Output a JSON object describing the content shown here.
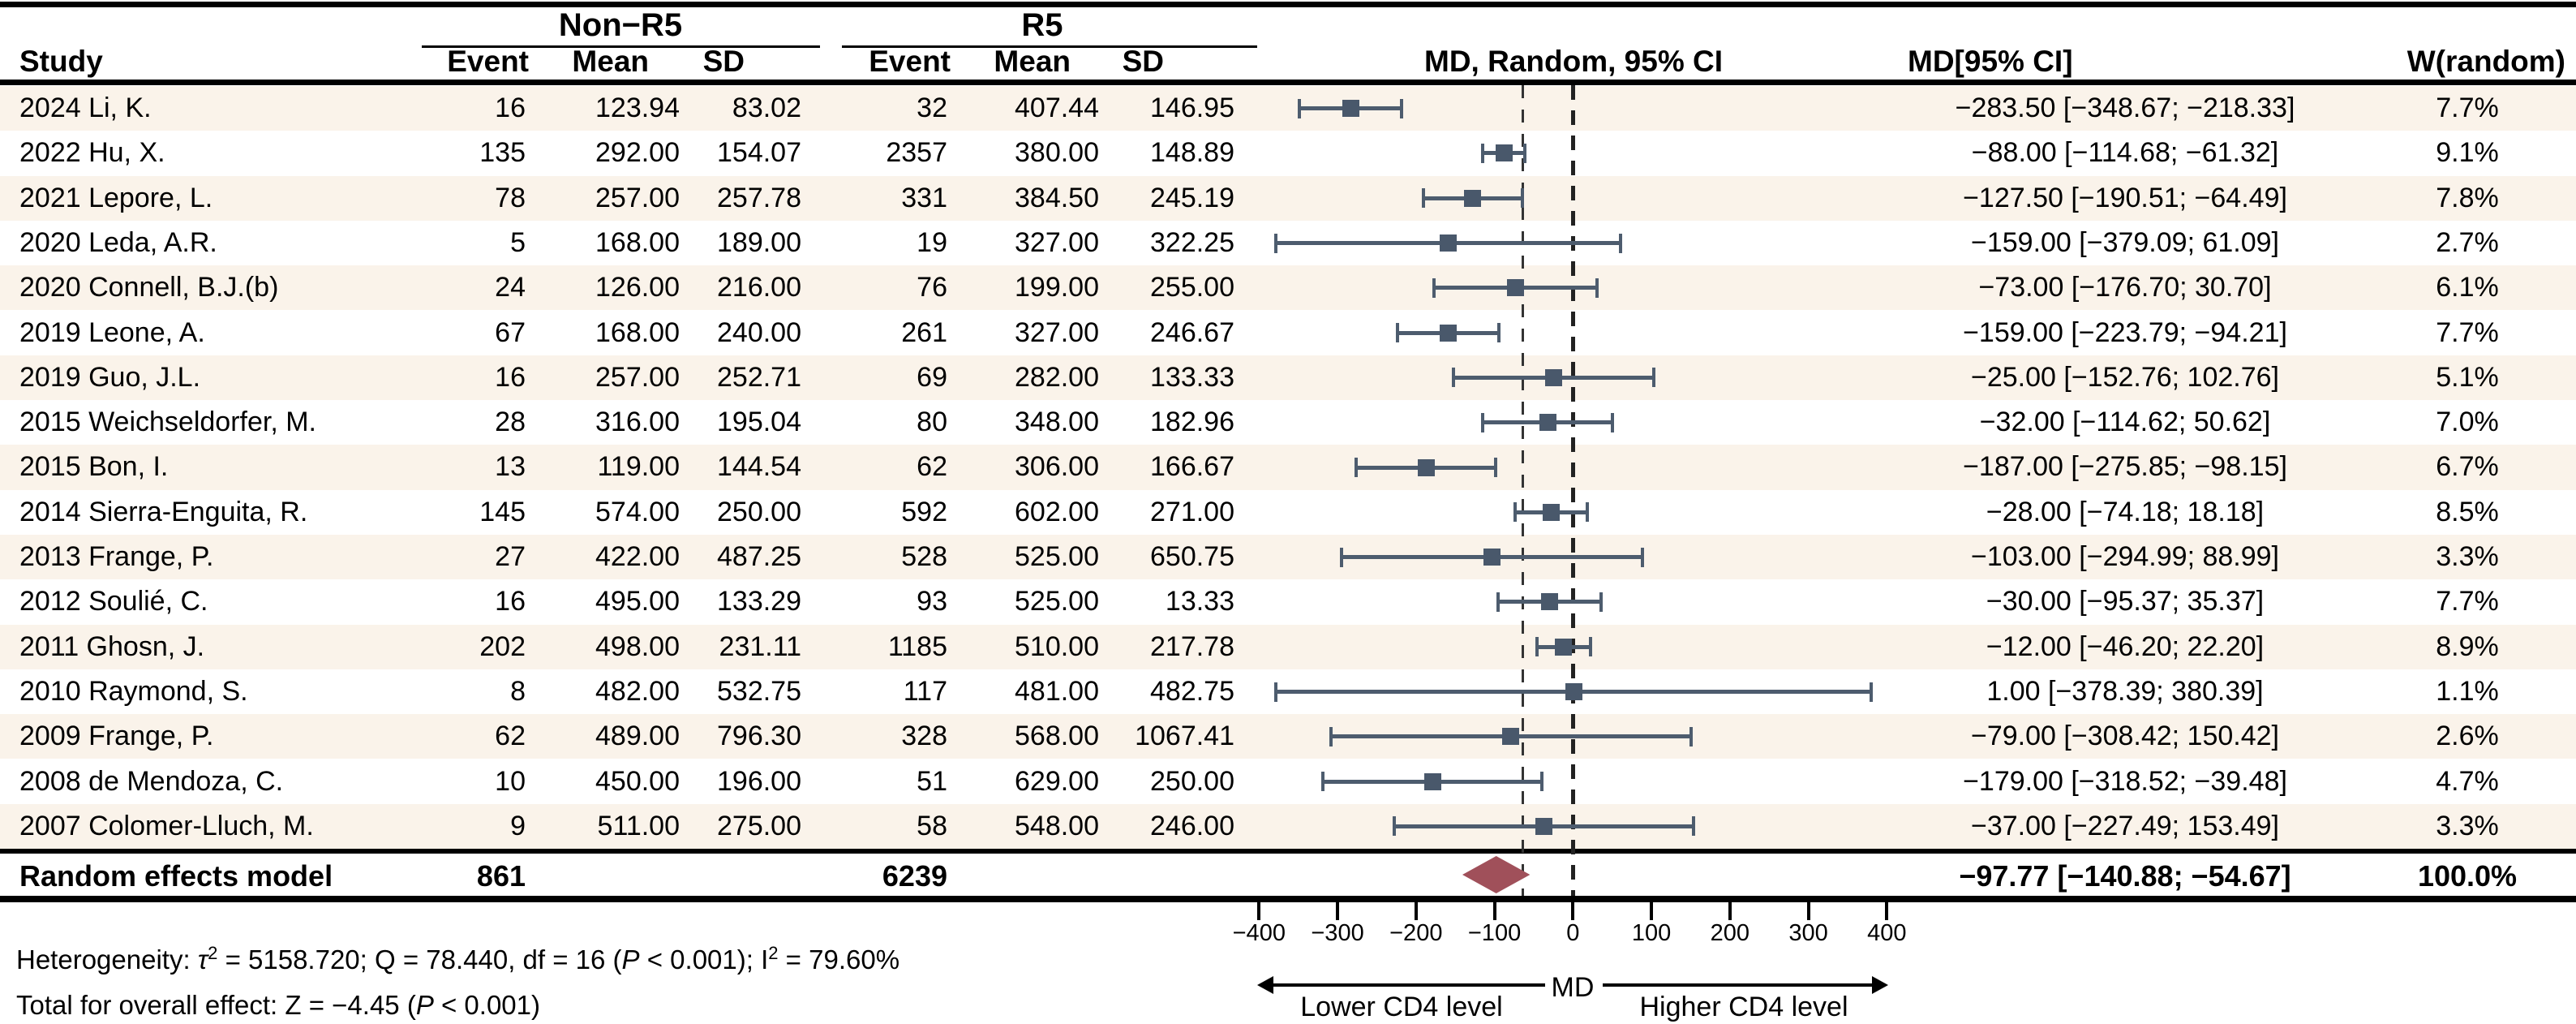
{
  "header": {
    "study": "Study",
    "group1": "Non−R5",
    "group2": "R5",
    "sub": [
      "Event",
      "Mean",
      "SD"
    ],
    "plot_col": "MD, Random, 95% CI",
    "md_col": "MD[95% CI]",
    "weight_col": "W(random)"
  },
  "chart_data": {
    "type": "forest",
    "effect_measure": "MD, Random, 95% CI",
    "xlim": [
      -400,
      400
    ],
    "x_ticks": [
      -400,
      -300,
      -200,
      -100,
      0,
      100,
      200,
      300,
      400
    ],
    "x_tick_labels": [
      "−400",
      "−300",
      "−200",
      "−100",
      "0",
      "100",
      "200",
      "300",
      "400"
    ],
    "zero_line": 0,
    "dashed_reference_line": -64,
    "studies": [
      {
        "study": "2024 Li, K.",
        "event_nonr5": "16",
        "mean_nonr5": "123.94",
        "sd_nonr5": "83.02",
        "event_r5": "32",
        "mean_r5": "407.44",
        "sd_r5": "146.95",
        "md": -283.5,
        "ci_lower": -348.67,
        "ci_upper": -218.33,
        "md_ci_label": "−283.50 [−348.67; −218.33]",
        "weight_pct": 7.7,
        "weight_label": "7.7%"
      },
      {
        "study": "2022 Hu, X.",
        "event_nonr5": "135",
        "mean_nonr5": "292.00",
        "sd_nonr5": "154.07",
        "event_r5": "2357",
        "mean_r5": "380.00",
        "sd_r5": "148.89",
        "md": -88.0,
        "ci_lower": -114.68,
        "ci_upper": -61.32,
        "md_ci_label": "−88.00 [−114.68; −61.32]",
        "weight_pct": 9.1,
        "weight_label": "9.1%"
      },
      {
        "study": "2021 Lepore, L.",
        "event_nonr5": "78",
        "mean_nonr5": "257.00",
        "sd_nonr5": "257.78",
        "event_r5": "331",
        "mean_r5": "384.50",
        "sd_r5": "245.19",
        "md": -127.5,
        "ci_lower": -190.51,
        "ci_upper": -64.49,
        "md_ci_label": "−127.50 [−190.51; −64.49]",
        "weight_pct": 7.8,
        "weight_label": "7.8%"
      },
      {
        "study": "2020 Leda, A.R.",
        "event_nonr5": "5",
        "mean_nonr5": "168.00",
        "sd_nonr5": "189.00",
        "event_r5": "19",
        "mean_r5": "327.00",
        "sd_r5": "322.25",
        "md": -159.0,
        "ci_lower": -379.09,
        "ci_upper": 61.09,
        "md_ci_label": "−159.00 [−379.09; 61.09]",
        "weight_pct": 2.7,
        "weight_label": "2.7%"
      },
      {
        "study": "2020 Connell, B.J.(b)",
        "event_nonr5": "24",
        "mean_nonr5": "126.00",
        "sd_nonr5": "216.00",
        "event_r5": "76",
        "mean_r5": "199.00",
        "sd_r5": "255.00",
        "md": -73.0,
        "ci_lower": -176.7,
        "ci_upper": 30.7,
        "md_ci_label": "−73.00 [−176.70; 30.70]",
        "weight_pct": 6.1,
        "weight_label": "6.1%"
      },
      {
        "study": "2019 Leone, A.",
        "event_nonr5": "67",
        "mean_nonr5": "168.00",
        "sd_nonr5": "240.00",
        "event_r5": "261",
        "mean_r5": "327.00",
        "sd_r5": "246.67",
        "md": -159.0,
        "ci_lower": -223.79,
        "ci_upper": -94.21,
        "md_ci_label": "−159.00 [−223.79; −94.21]",
        "weight_pct": 7.7,
        "weight_label": "7.7%"
      },
      {
        "study": "2019 Guo, J.L.",
        "event_nonr5": "16",
        "mean_nonr5": "257.00",
        "sd_nonr5": "252.71",
        "event_r5": "69",
        "mean_r5": "282.00",
        "sd_r5": "133.33",
        "md": -25.0,
        "ci_lower": -152.76,
        "ci_upper": 102.76,
        "md_ci_label": "−25.00 [−152.76; 102.76]",
        "weight_pct": 5.1,
        "weight_label": "5.1%"
      },
      {
        "study": "2015 Weichseldorfer, M.",
        "event_nonr5": "28",
        "mean_nonr5": "316.00",
        "sd_nonr5": "195.04",
        "event_r5": "80",
        "mean_r5": "348.00",
        "sd_r5": "182.96",
        "md": -32.0,
        "ci_lower": -114.62,
        "ci_upper": 50.62,
        "md_ci_label": "−32.00 [−114.62; 50.62]",
        "weight_pct": 7.0,
        "weight_label": "7.0%"
      },
      {
        "study": "2015 Bon, I.",
        "event_nonr5": "13",
        "mean_nonr5": "119.00",
        "sd_nonr5": "144.54",
        "event_r5": "62",
        "mean_r5": "306.00",
        "sd_r5": "166.67",
        "md": -187.0,
        "ci_lower": -275.85,
        "ci_upper": -98.15,
        "md_ci_label": "−187.00 [−275.85; −98.15]",
        "weight_pct": 6.7,
        "weight_label": "6.7%"
      },
      {
        "study": "2014 Sierra-Enguita, R.",
        "event_nonr5": "145",
        "mean_nonr5": "574.00",
        "sd_nonr5": "250.00",
        "event_r5": "592",
        "mean_r5": "602.00",
        "sd_r5": "271.00",
        "md": -28.0,
        "ci_lower": -74.18,
        "ci_upper": 18.18,
        "md_ci_label": "−28.00 [−74.18; 18.18]",
        "weight_pct": 8.5,
        "weight_label": "8.5%"
      },
      {
        "study": "2013 Frange, P.",
        "event_nonr5": "27",
        "mean_nonr5": "422.00",
        "sd_nonr5": "487.25",
        "event_r5": "528",
        "mean_r5": "525.00",
        "sd_r5": "650.75",
        "md": -103.0,
        "ci_lower": -294.99,
        "ci_upper": 88.99,
        "md_ci_label": "−103.00 [−294.99; 88.99]",
        "weight_pct": 3.3,
        "weight_label": "3.3%"
      },
      {
        "study": "2012 Soulié, C.",
        "event_nonr5": "16",
        "mean_nonr5": "495.00",
        "sd_nonr5": "133.29",
        "event_r5": "93",
        "mean_r5": "525.00",
        "sd_r5": "13.33",
        "md": -30.0,
        "ci_lower": -95.37,
        "ci_upper": 35.37,
        "md_ci_label": "−30.00 [−95.37; 35.37]",
        "weight_pct": 7.7,
        "weight_label": "7.7%"
      },
      {
        "study": "2011 Ghosn, J.",
        "event_nonr5": "202",
        "mean_nonr5": "498.00",
        "sd_nonr5": "231.11",
        "event_r5": "1185",
        "mean_r5": "510.00",
        "sd_r5": "217.78",
        "md": -12.0,
        "ci_lower": -46.2,
        "ci_upper": 22.2,
        "md_ci_label": "−12.00 [−46.20; 22.20]",
        "weight_pct": 8.9,
        "weight_label": "8.9%"
      },
      {
        "study": "2010 Raymond, S.",
        "event_nonr5": "8",
        "mean_nonr5": "482.00",
        "sd_nonr5": "532.75",
        "event_r5": "117",
        "mean_r5": "481.00",
        "sd_r5": "482.75",
        "md": 1.0,
        "ci_lower": -378.39,
        "ci_upper": 380.39,
        "md_ci_label": "1.00 [−378.39; 380.39]",
        "weight_pct": 1.1,
        "weight_label": "1.1%"
      },
      {
        "study": "2009 Frange, P.",
        "event_nonr5": "62",
        "mean_nonr5": "489.00",
        "sd_nonr5": "796.30",
        "event_r5": "328",
        "mean_r5": "568.00",
        "sd_r5": "1067.41",
        "md": -79.0,
        "ci_lower": -308.42,
        "ci_upper": 150.42,
        "md_ci_label": "−79.00 [−308.42; 150.42]",
        "weight_pct": 2.6,
        "weight_label": "2.6%"
      },
      {
        "study": "2008 de Mendoza, C.",
        "event_nonr5": "10",
        "mean_nonr5": "450.00",
        "sd_nonr5": "196.00",
        "event_r5": "51",
        "mean_r5": "629.00",
        "sd_r5": "250.00",
        "md": -179.0,
        "ci_lower": -318.52,
        "ci_upper": -39.48,
        "md_ci_label": "−179.00 [−318.52; −39.48]",
        "weight_pct": 4.7,
        "weight_label": "4.7%"
      },
      {
        "study": "2007 Colomer-Lluch, M.",
        "event_nonr5": "9",
        "mean_nonr5": "511.00",
        "sd_nonr5": "275.00",
        "event_r5": "58",
        "mean_r5": "548.00",
        "sd_r5": "246.00",
        "md": -37.0,
        "ci_lower": -227.49,
        "ci_upper": 153.49,
        "md_ci_label": "−37.00 [−227.49; 153.49]",
        "weight_pct": 3.3,
        "weight_label": "3.3%"
      }
    ],
    "pooled": {
      "label": "Random effects model",
      "event_nonr5": "861",
      "event_r5": "6239",
      "md": -97.77,
      "ci_lower": -140.88,
      "ci_upper": -54.67,
      "md_ci_label": "−97.77 [−140.88; −54.67]",
      "weight_label": "100.0%"
    },
    "heterogeneity": {
      "tau2": 5158.72,
      "Q": 78.44,
      "df": 16,
      "p": "< 0.001",
      "I2": "79.60%"
    },
    "overall_effect": {
      "Z": -4.45,
      "p": "< 0.001"
    }
  },
  "footer": {
    "het_prefix": "Heterogeneity: ",
    "tau": "τ",
    "tau_sup": "2",
    "het_mid": " = 5158.720; Q = 78.440, df = 16 (",
    "p_italic": "P",
    "het_mid2": " < 0.001); I",
    "i_sup": "2",
    "het_end": " = 79.60%",
    "tot_prefix": "Total for overall effect: Z = −4.45 (",
    "p2_italic": "P",
    "tot_end": " < 0.001)"
  },
  "axis_arrows": {
    "left_label": "Lower CD4 level",
    "center_label": "MD",
    "right_label": "Higher CD4 level"
  },
  "colors": {
    "square": "#49586b",
    "ci_line": "#4d5c6e",
    "diamond": "#a0505a",
    "stripe": "#faf3ea",
    "dashed_zero": "#222222",
    "dashed_reference": "#333333",
    "line": "#000000"
  }
}
